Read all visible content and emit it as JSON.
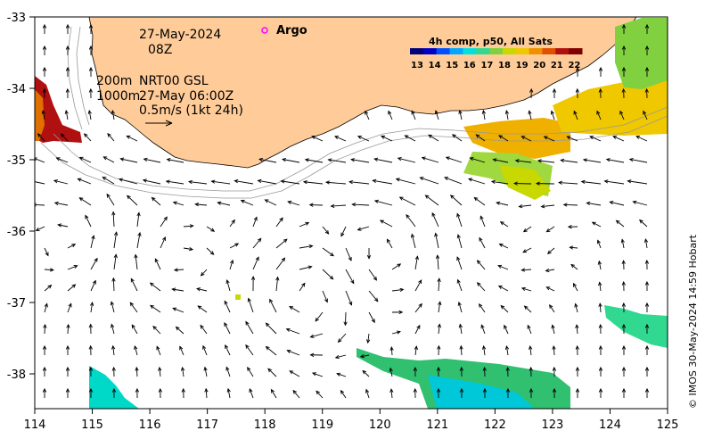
{
  "map": {
    "date_line": "27-May-2024",
    "time_line": "08Z",
    "legend_argo": "Argo",
    "depth_200": "200m",
    "depth_1000": "1000m",
    "product": "NRT00 GSL",
    "product_time": "27-May 06:00Z",
    "vector_scale": "0.5m/s (1kt 24h)",
    "credit": "© IMOS 30-May-2024 14:59 Hobart",
    "colorbar": {
      "title": "4h comp, p50, All Sats",
      "ticks": [
        "13",
        "14",
        "15",
        "16",
        "17",
        "18",
        "19",
        "20",
        "21",
        "22"
      ],
      "colors": [
        "#00007a",
        "#0000c8",
        "#0050ff",
        "#00a8ff",
        "#00e0e0",
        "#30d890",
        "#80d040",
        "#c8d800",
        "#f0c800",
        "#f09000",
        "#e05000",
        "#b01010",
        "#800000"
      ]
    },
    "x_ticks": [
      "114",
      "115",
      "116",
      "117",
      "118",
      "119",
      "120",
      "121",
      "122",
      "123",
      "124",
      "125"
    ],
    "y_ticks": [
      "-33",
      "-34",
      "-35",
      "-36",
      "-37",
      "-38"
    ],
    "lon_range": [
      114,
      125
    ],
    "lat_range": [
      -33,
      -38.5
    ],
    "colors": {
      "land": "#ffcc99",
      "coast": "#000000",
      "isobath": "#999999",
      "argo": "#ff00ff"
    }
  }
}
